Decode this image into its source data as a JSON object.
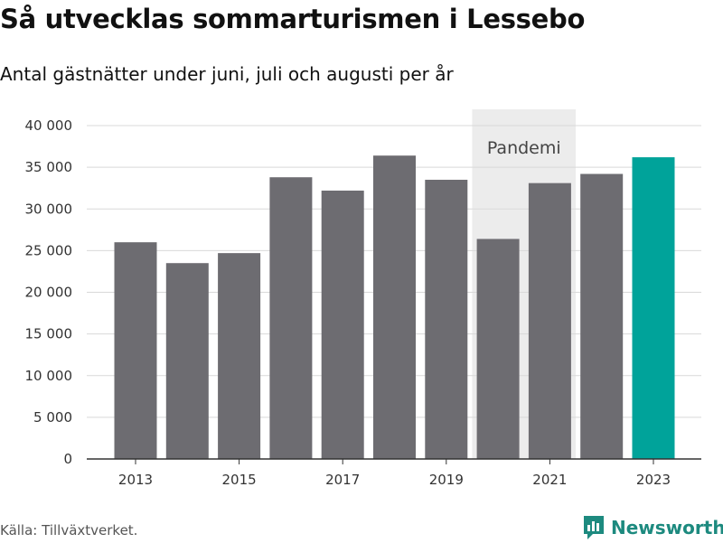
{
  "title": "Så utvecklas sommarturismen i Lessebo",
  "subtitle": "Antal gästnätter under juni, juli och augusti per år",
  "source": "Källa: Tillväxtverket.",
  "brand": {
    "name": "Newsworthy",
    "icon": "newsworthy-logo-icon"
  },
  "colors": {
    "bar": "#6d6c71",
    "highlight": "#00a39a",
    "band": "#ececec",
    "grid": "#d9d9d9",
    "axis": "#333333",
    "brand": "#1d8a7f"
  },
  "chart_data": {
    "type": "bar",
    "categories": [
      "2013",
      "2014",
      "2015",
      "2016",
      "2017",
      "2018",
      "2019",
      "2020",
      "2021",
      "2022",
      "2023"
    ],
    "values": [
      26000,
      23500,
      24700,
      33800,
      32200,
      36400,
      33500,
      26400,
      33100,
      34200,
      36200
    ],
    "highlight_category": "2023",
    "xtick_labels": [
      "2013",
      "2015",
      "2017",
      "2019",
      "2021",
      "2023"
    ],
    "yticks": [
      0,
      5000,
      10000,
      15000,
      20000,
      25000,
      30000,
      35000,
      40000
    ],
    "ytick_labels": [
      "0",
      "5 000",
      "10 000",
      "15 000",
      "20 000",
      "25 000",
      "30 000",
      "35 000",
      "40 000"
    ],
    "ylim": [
      0,
      40000
    ],
    "xlabel": "",
    "ylabel": "",
    "grid": true,
    "annotation": {
      "text": "Pandemi",
      "categories": [
        "2020",
        "2021"
      ]
    }
  }
}
